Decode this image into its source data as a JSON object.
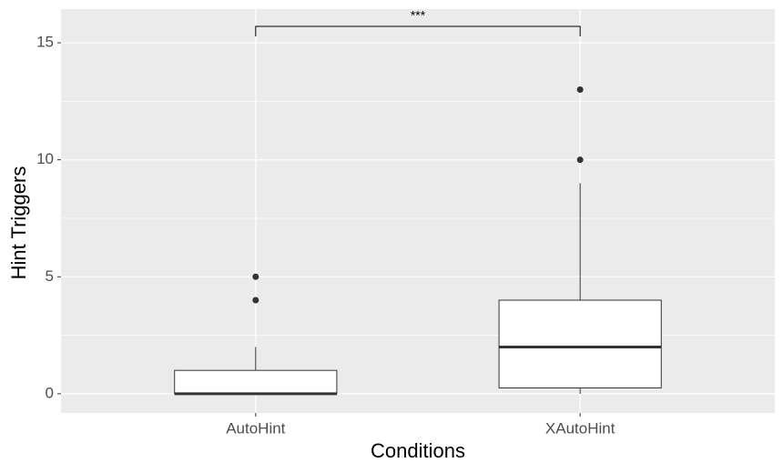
{
  "chart_data": {
    "type": "box",
    "x_label": "Conditions",
    "y_label": "Hint Triggers",
    "categories": [
      "AutoHint",
      "XAutoHint"
    ],
    "boxes": [
      {
        "min": 0,
        "q1": 0,
        "median": 0,
        "q3": 1,
        "max": 2,
        "outliers": [
          4,
          5
        ]
      },
      {
        "min": 0,
        "q1": 0.25,
        "median": 2,
        "q3": 4,
        "max": 9,
        "outliers": [
          10,
          13
        ]
      }
    ],
    "significance": "***",
    "ylim": [
      -0.82,
      16.44
    ],
    "yticks": [
      0,
      5,
      10,
      15
    ],
    "minor_yticks": [
      2.5,
      7.5,
      12.5
    ],
    "grid": true,
    "panel_color": "#ebebeb",
    "box_fill": "#ffffff",
    "line_color": "#333333"
  }
}
